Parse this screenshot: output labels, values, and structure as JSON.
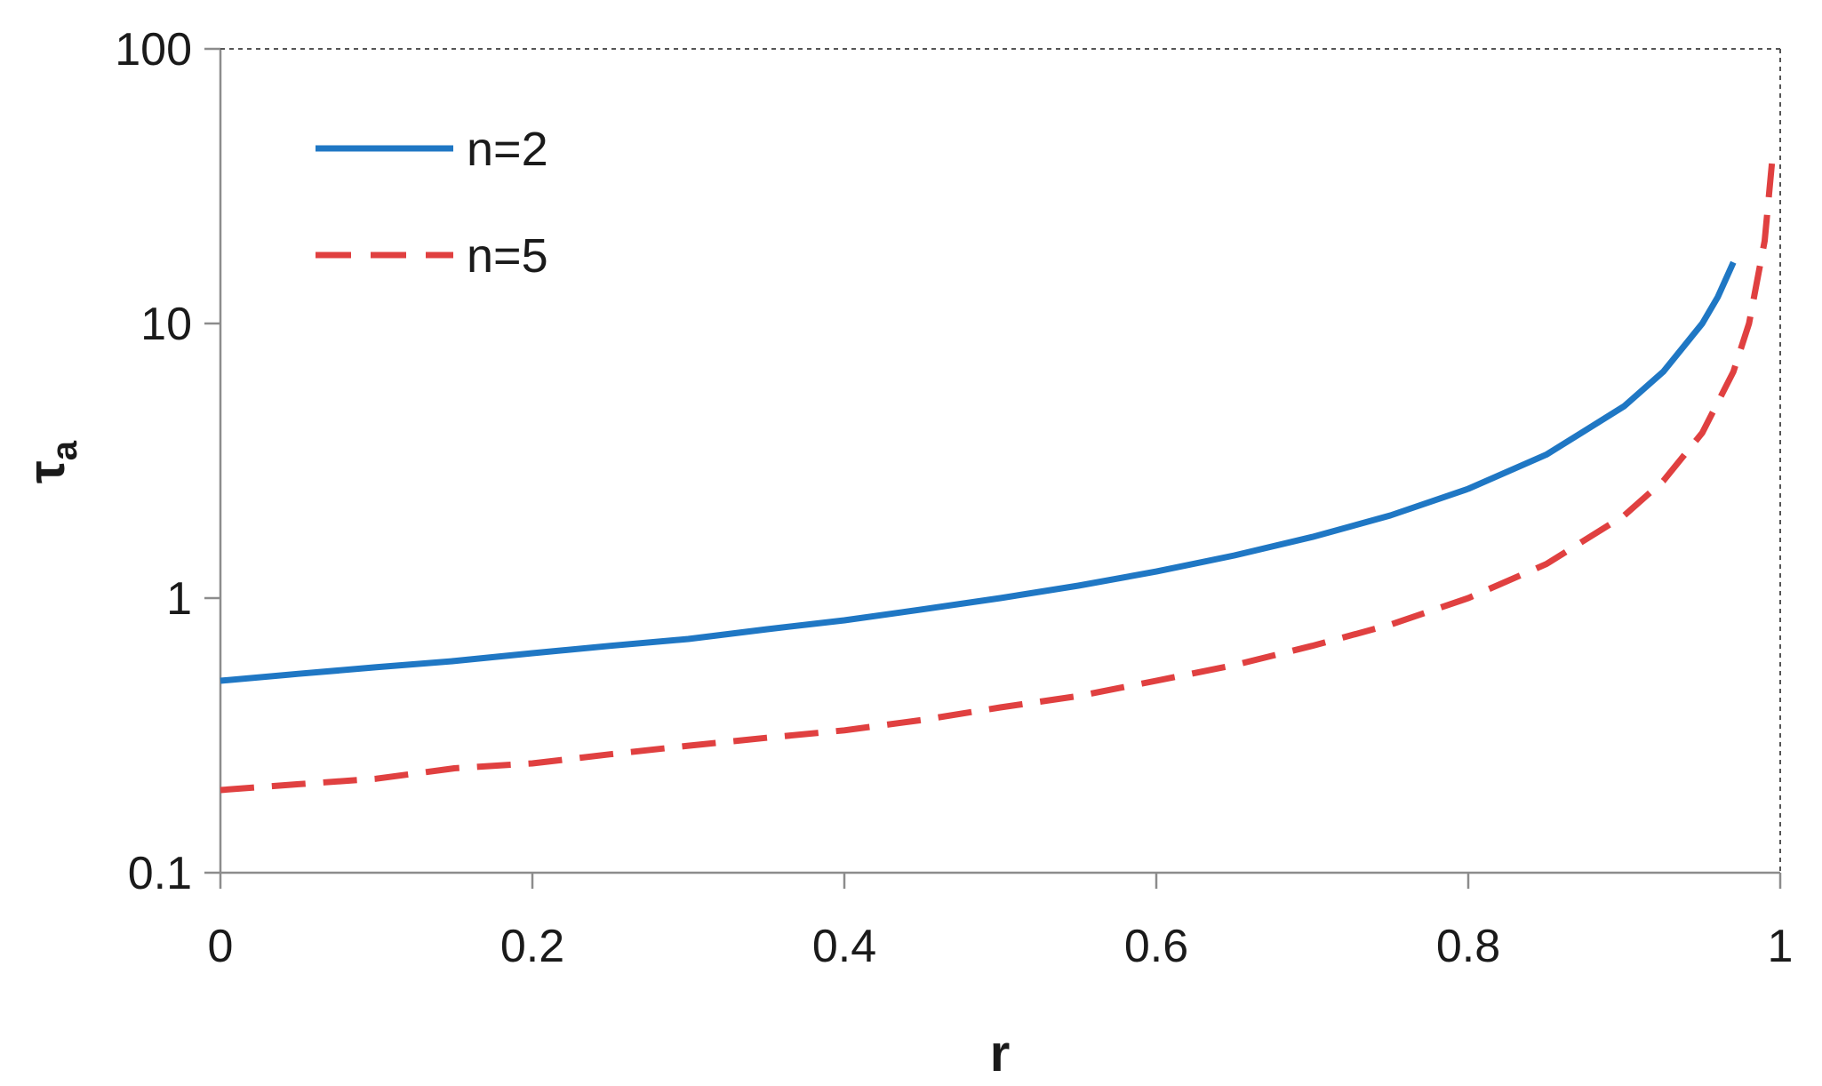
{
  "chart_data": {
    "type": "line",
    "xlabel": "r",
    "ylabel": "τ",
    "ylabel_sub": "a",
    "xlim": [
      0,
      1
    ],
    "ylim": [
      0.1,
      100
    ],
    "yscale": "log",
    "xticks": [
      "0",
      "0.2",
      "0.4",
      "0.6",
      "0.8",
      "1"
    ],
    "yticks": [
      "0.1",
      "1",
      "10",
      "100"
    ],
    "grid": false,
    "legend_position": "top-left",
    "reference_lines": "dotted lines at x = 1 and y = 100",
    "series": [
      {
        "name": "n=2",
        "color": "#1f77c4",
        "style": "solid",
        "x": [
          0,
          0.05,
          0.1,
          0.15,
          0.2,
          0.25,
          0.3,
          0.35,
          0.4,
          0.45,
          0.5,
          0.55,
          0.6,
          0.65,
          0.7,
          0.75,
          0.8,
          0.85,
          0.9,
          0.925,
          0.95,
          0.96,
          0.97
        ],
        "y": [
          0.5,
          0.53,
          0.56,
          0.59,
          0.63,
          0.67,
          0.71,
          0.77,
          0.83,
          0.91,
          1.0,
          1.11,
          1.25,
          1.43,
          1.67,
          2.0,
          2.5,
          3.33,
          5.0,
          6.67,
          10.0,
          12.5,
          16.7
        ]
      },
      {
        "name": "n=5",
        "color": "#e04040",
        "style": "dashed",
        "x": [
          0,
          0.05,
          0.1,
          0.15,
          0.2,
          0.25,
          0.3,
          0.35,
          0.4,
          0.45,
          0.5,
          0.55,
          0.6,
          0.65,
          0.7,
          0.75,
          0.8,
          0.85,
          0.9,
          0.925,
          0.95,
          0.97,
          0.98,
          0.99,
          0.995
        ],
        "y": [
          0.2,
          0.21,
          0.22,
          0.24,
          0.25,
          0.27,
          0.29,
          0.31,
          0.33,
          0.36,
          0.4,
          0.44,
          0.5,
          0.57,
          0.67,
          0.8,
          1.0,
          1.33,
          2.0,
          2.67,
          4.0,
          6.67,
          10.0,
          20.0,
          40.0
        ]
      }
    ]
  }
}
